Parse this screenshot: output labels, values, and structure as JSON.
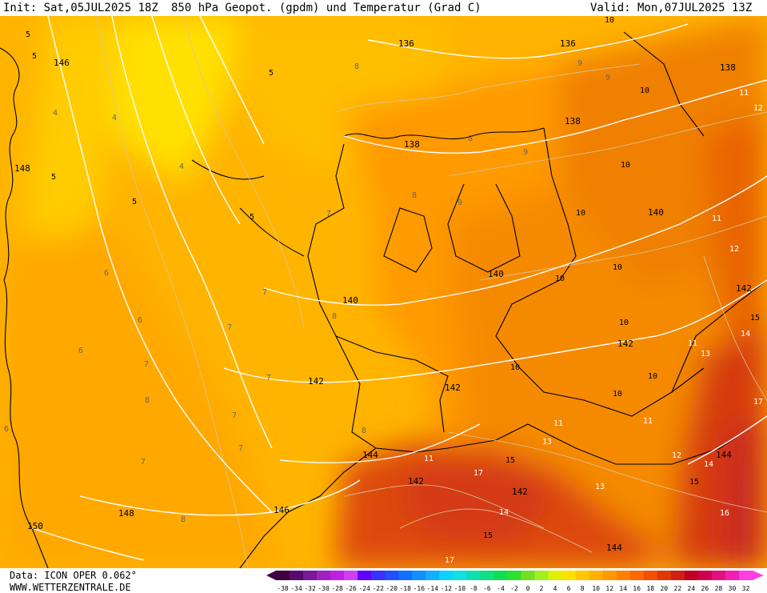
{
  "header": {
    "init": "Init: Sat,05JUL2025 18Z",
    "title": "850 hPa Geopot. (gpdm) und Temperatur (Grad C)",
    "valid": "Valid: Mon,07JUL2025 13Z"
  },
  "footer": {
    "model": "Data: ICON OPER 0.062°",
    "site": "WWW.WETTERZENTRALE.DE"
  },
  "legend": {
    "ticks": [
      "-38",
      "-34",
      "-32",
      "-30",
      "-28",
      "-26",
      "-24",
      "-22",
      "-20",
      "-18",
      "-16",
      "-14",
      "-12",
      "-10",
      "-8",
      "-6",
      "-4",
      "-2",
      "0",
      "2",
      "4",
      "6",
      "8",
      "10",
      "12",
      "14",
      "16",
      "18",
      "20",
      "22",
      "24",
      "26",
      "28",
      "30",
      "32"
    ],
    "colors": [
      "#400040",
      "#5a0a6e",
      "#7a1a96",
      "#a020c0",
      "#c020e0",
      "#d040f0",
      "#6000ff",
      "#3a30ff",
      "#2050ff",
      "#1070ff",
      "#1090ff",
      "#10b0ff",
      "#10d0ff",
      "#10e0e0",
      "#10e0b0",
      "#10e080",
      "#10e050",
      "#30e030",
      "#70e020",
      "#a0f020",
      "#e0f000",
      "#ffe000",
      "#ffc800",
      "#ffb000",
      "#ff9800",
      "#ff8000",
      "#ff6800",
      "#f05000",
      "#e03800",
      "#d02010",
      "#c00020",
      "#d00050",
      "#e01080",
      "#f020b0",
      "#ff40e0"
    ]
  },
  "geopotential_labels": [
    "136",
    "136",
    "138",
    "138",
    "138",
    "140",
    "140",
    "140",
    "142",
    "142",
    "142",
    "142",
    "142",
    "142",
    "144",
    "144",
    "144",
    "146",
    "146",
    "148",
    "148",
    "150"
  ],
  "temperature_labels": [
    "4",
    "4",
    "4",
    "5",
    "5",
    "5",
    "5",
    "5",
    "5",
    "6",
    "6",
    "6",
    "6",
    "7",
    "7",
    "7",
    "7",
    "7",
    "7",
    "7",
    "7",
    "8",
    "8",
    "8",
    "8",
    "8",
    "8",
    "8",
    "9",
    "9",
    "9",
    "9",
    "10",
    "10",
    "10",
    "10",
    "10",
    "10",
    "10",
    "10",
    "10",
    "10",
    "11",
    "11",
    "11",
    "11",
    "11",
    "11",
    "12",
    "12",
    "12",
    "13",
    "13",
    "13",
    "14",
    "14",
    "14",
    "15",
    "15",
    "15",
    "15",
    "16",
    "17",
    "17",
    "17"
  ]
}
